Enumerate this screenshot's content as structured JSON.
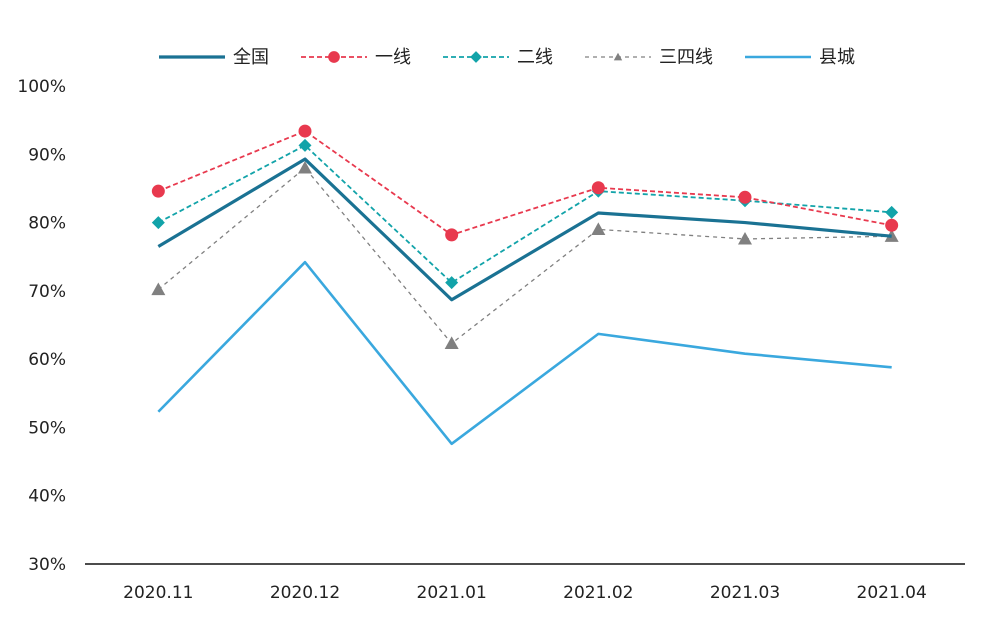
{
  "chart_data": {
    "type": "line",
    "categories": [
      "2020.11",
      "2020.12",
      "2021.01",
      "2021.02",
      "2021.03",
      "2021.04"
    ],
    "y_ticks": [
      "100%",
      "90%",
      "80%",
      "70%",
      "60%",
      "50%",
      "40%",
      "30%"
    ],
    "ylim": [
      30,
      100
    ],
    "y_step": 10,
    "grid": false,
    "legend_position": "top",
    "series": [
      {
        "name": "全国",
        "values": [
          76.5,
          89.3,
          68.7,
          81.4,
          80.0,
          78.0
        ],
        "color": "#1a7293",
        "style": "solid",
        "marker": "none"
      },
      {
        "name": "一线",
        "values": [
          84.6,
          93.4,
          78.2,
          85.1,
          83.7,
          79.6
        ],
        "color": "#e8394e",
        "style": "dashed",
        "marker": "circle"
      },
      {
        "name": "二线",
        "values": [
          80.0,
          91.3,
          71.2,
          84.6,
          83.2,
          81.5
        ],
        "color": "#12a3a9",
        "style": "dashed",
        "marker": "diamond"
      },
      {
        "name": "三四线",
        "values": [
          70.2,
          88.0,
          62.3,
          79.0,
          77.6,
          78.0
        ],
        "color": "#808080",
        "style": "dashed",
        "marker": "triangle"
      },
      {
        "name": "县城",
        "values": [
          52.3,
          74.2,
          47.6,
          63.7,
          60.8,
          58.8
        ],
        "color": "#3aa8de",
        "style": "solid",
        "marker": "none"
      }
    ]
  }
}
